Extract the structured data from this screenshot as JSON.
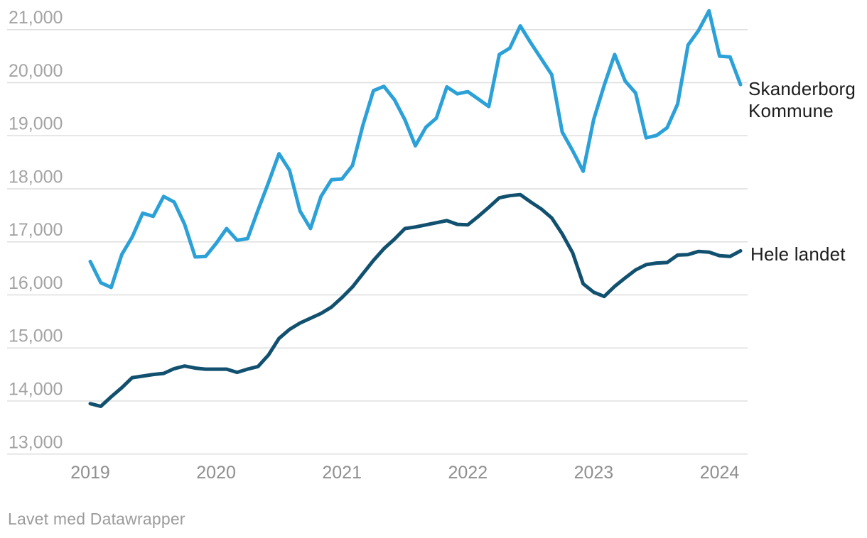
{
  "chart_data": {
    "type": "line",
    "title": "",
    "grid": true,
    "legend_position": "right-direct-labels",
    "x_axis": {
      "start": "2019-01",
      "end": "2024-03",
      "frequency": "monthly",
      "tick_labels": [
        "2019",
        "2020",
        "2021",
        "2022",
        "2023",
        "2024"
      ]
    },
    "y_axis": {
      "tick_values": [
        13000,
        14000,
        15000,
        16000,
        17000,
        18000,
        19000,
        20000,
        21000
      ],
      "tick_labels": [
        "13,000",
        "14,000",
        "15,000",
        "16,000",
        "17,000",
        "18,000",
        "19,000",
        "20,000",
        "21,000"
      ],
      "range": [
        12750,
        21450
      ]
    },
    "series": [
      {
        "name": "Skanderborg Kommune",
        "color": "#2ba1d8",
        "values": [
          16630,
          16230,
          16140,
          16760,
          17090,
          17540,
          17480,
          17855,
          17750,
          17330,
          16715,
          16725,
          16970,
          17250,
          17030,
          17060,
          17600,
          18120,
          18660,
          18350,
          17580,
          17250,
          17855,
          18170,
          18185,
          18440,
          19200,
          19850,
          19930,
          19680,
          19300,
          18810,
          19160,
          19330,
          19920,
          19790,
          19830,
          19690,
          19550,
          20530,
          20650,
          21070,
          20750,
          20450,
          20150,
          19070,
          18715,
          18330,
          19305,
          19950,
          20530,
          20030,
          19805,
          18960,
          19005,
          19150,
          19595,
          20710,
          20985,
          21355,
          20500,
          20485,
          19965
        ]
      },
      {
        "name": "Hele landet",
        "color": "#11506f",
        "values": [
          13950,
          13900,
          14080,
          14250,
          14440,
          14470,
          14500,
          14520,
          14610,
          14660,
          14620,
          14600,
          14600,
          14600,
          14540,
          14600,
          14650,
          14870,
          15180,
          15350,
          15470,
          15560,
          15650,
          15770,
          15950,
          16150,
          16400,
          16650,
          16870,
          17050,
          17250,
          17280,
          17320,
          17360,
          17400,
          17330,
          17320,
          17480,
          17650,
          17830,
          17870,
          17890,
          17750,
          17620,
          17450,
          17150,
          16790,
          16210,
          16050,
          15970,
          16160,
          16320,
          16470,
          16570,
          16600,
          16610,
          16750,
          16760,
          16820,
          16805,
          16740,
          16725,
          16830
        ]
      }
    ]
  },
  "footer": {
    "text": "Lavet med Datawrapper"
  },
  "style_colors": {
    "gridline": "#dedede",
    "y_tick_text": "#a3a3a3",
    "x_tick_text": "#8f8f8f",
    "series_label_text": "#1d1d1d",
    "footer_text": "#9b9b9b"
  }
}
